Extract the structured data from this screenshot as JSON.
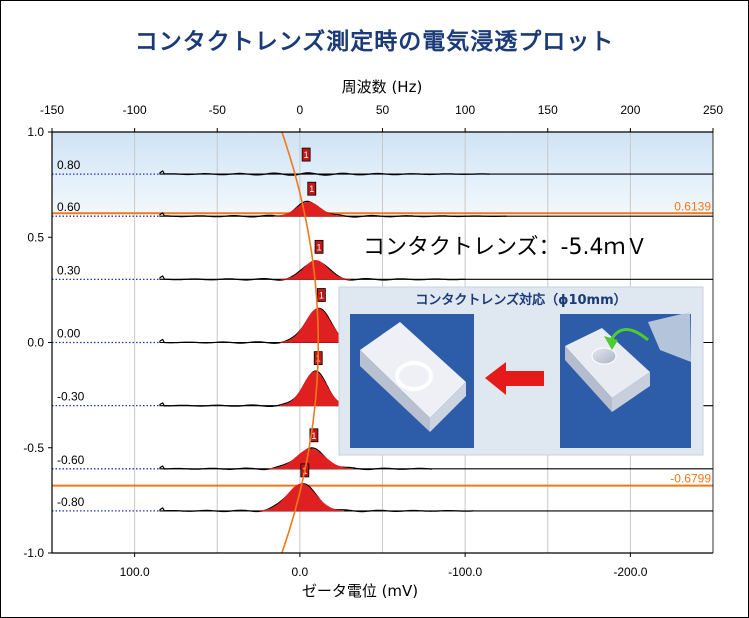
{
  "title": "コンタクトレンズ測定時の電気浸透プロット",
  "chart_data": {
    "type": "line",
    "top_axis": {
      "label": "周波数 (Hz)",
      "range": [
        -150,
        250
      ],
      "ticks": [
        "-150",
        "-100",
        "-50",
        "0",
        "50",
        "100",
        "150",
        "200",
        "250"
      ]
    },
    "bottom_axis": {
      "label": "ゼータ電位 (mV)",
      "ticks": [
        "100.0",
        "0.0",
        "-100.0",
        "-200.0"
      ]
    },
    "left_axis": {
      "range": [
        -1.0,
        1.0
      ],
      "ticks": [
        "1.0",
        "0.5",
        "0.0",
        "-0.5",
        "-1.0"
      ]
    },
    "grid": true,
    "position_labels": [
      "0.80",
      "0.60",
      "0.30",
      "0.00",
      "-0.30",
      "-0.60",
      "-0.80"
    ],
    "peak_positions": [
      1.8,
      5.2,
      9.6,
      11.0,
      9.1,
      6.5,
      1.0
    ],
    "marker_label": "1",
    "boundary_values": [
      {
        "label": "0.6139",
        "y": 0.6139
      },
      {
        "label": "-0.6799",
        "y": -0.6799
      }
    ],
    "annotation": "コンタクトレンズ：-5.4ｍＶ"
  },
  "inset": {
    "title": "コンタクトレンズ対応（ϕ10mm）",
    "arrow": "red-left-arrow"
  },
  "colors": {
    "title": "#1a3a78",
    "peak": "#e02020",
    "orange": "#f07818",
    "baseline_dots": "#2030c0",
    "band_top": "#cfe3f5",
    "inset_bg": "#dfe7f0",
    "photo_bg": "#2d5ca8"
  }
}
